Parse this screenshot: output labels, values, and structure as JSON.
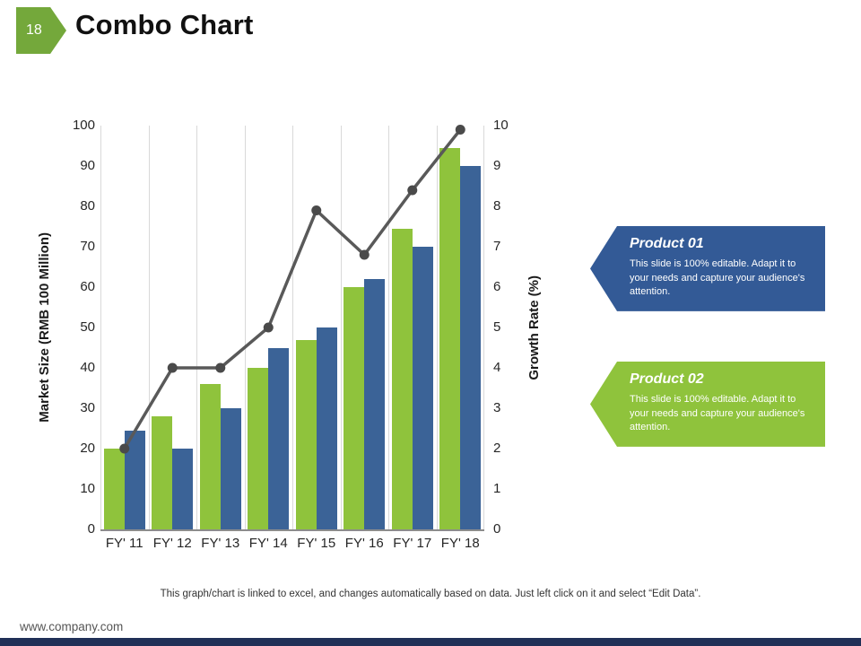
{
  "slide": {
    "number": "18",
    "title": "Combo Chart",
    "footer_note": "This graph/chart is linked to excel, and changes automatically based on data. Just left click on it and select “Edit Data”.",
    "website": "www.company.com"
  },
  "theme": {
    "badge_green": "#74a83b",
    "bar_green": "#8fc33c",
    "bar_blue": "#3b6397",
    "line_gray": "#595959",
    "marker_gray": "#4a4a4a",
    "callout_blue": "#335a96",
    "callout_green": "#8fc33c",
    "bottom_bar_navy": "#203057",
    "gridline": "#d9d9d9"
  },
  "chart_data": {
    "type": "bar",
    "subtype": "combo-bar-line",
    "categories": [
      "FY' 11",
      "FY' 12",
      "FY' 13",
      "FY' 14",
      "FY' 15",
      "FY' 16",
      "FY' 17",
      "FY' 18"
    ],
    "series": [
      {
        "name": "Product 02",
        "type": "bar",
        "axis": "left",
        "color": "#8fc33c",
        "values": [
          20,
          28,
          36,
          40,
          47,
          60,
          74.5,
          94.5
        ]
      },
      {
        "name": "Product 01",
        "type": "bar",
        "axis": "left",
        "color": "#3b6397",
        "values": [
          24.5,
          20,
          30,
          45,
          50,
          62,
          70,
          90
        ]
      },
      {
        "name": "Growth Rate",
        "type": "line",
        "axis": "right",
        "color": "#595959",
        "values": [
          2,
          4,
          4,
          5,
          7.9,
          6.8,
          8.4,
          9.9
        ]
      }
    ],
    "title": "",
    "xlabel": "",
    "left_axis": {
      "label": "Market Size (RMB 100 Million)",
      "min": 0,
      "max": 100,
      "step": 10
    },
    "right_axis": {
      "label": "Growth Rate (%)",
      "min": 0,
      "max": 10,
      "step": 1
    },
    "grid": "vertical-only",
    "legend": "none"
  },
  "callouts": [
    {
      "title": "Product 01",
      "body": "This slide is 100% editable. Adapt it to your needs and capture your audience's attention.",
      "color": "#335a96"
    },
    {
      "title": "Product 02",
      "body": "This slide is 100% editable. Adapt it to your needs and capture your audience's attention.",
      "color": "#8fc33c"
    }
  ]
}
